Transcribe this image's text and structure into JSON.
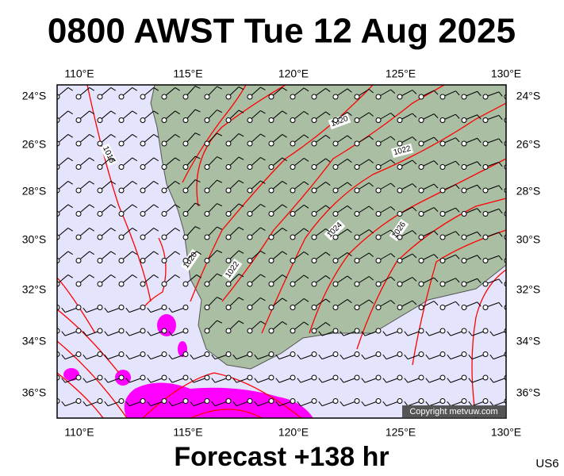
{
  "title": "0800 AWST Tue 12 Aug 2025",
  "map": {
    "lon_labels": [
      "110°E",
      "115°E",
      "120°E",
      "125°E",
      "130°E"
    ],
    "lat_labels": [
      "24°S",
      "26°S",
      "28°S",
      "30°S",
      "32°S",
      "34°S",
      "36°S"
    ],
    "isobar_labels": [
      "1018",
      "1020",
      "1020",
      "1022",
      "1022",
      "1024",
      "1026"
    ],
    "copyright": "Copyright metvuw.com"
  },
  "footer": {
    "forecast": "Forecast +138 hr",
    "code": "US6"
  }
}
